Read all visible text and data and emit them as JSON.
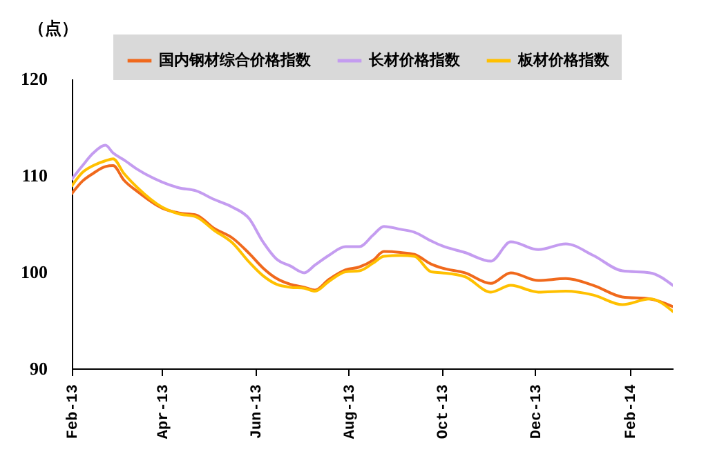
{
  "chart_data": {
    "type": "line",
    "ylabel": "（点）",
    "x": [
      "2013-02-01",
      "2013-02-08",
      "2013-02-15",
      "2013-02-23",
      "2013-02-28",
      "2013-03-07",
      "2013-03-16",
      "2013-04-01",
      "2013-04-12",
      "2013-04-23",
      "2013-05-05",
      "2013-05-17",
      "2013-05-28",
      "2013-06-06",
      "2013-06-15",
      "2013-06-24",
      "2013-07-03",
      "2013-07-10",
      "2013-07-19",
      "2013-07-30",
      "2013-08-08",
      "2013-08-17",
      "2013-08-24",
      "2013-09-04",
      "2013-09-13",
      "2013-09-24",
      "2013-10-01",
      "2013-10-16",
      "2013-11-02",
      "2013-11-15",
      "2013-12-03",
      "2013-12-21",
      "2014-01-08",
      "2014-01-27",
      "2014-02-14",
      "2014-03-01"
    ],
    "series": [
      {
        "name": "国内钢材综合价格指数",
        "color": "#f0691c",
        "values": [
          108.1,
          109.4,
          110.2,
          110.9,
          111.0,
          109.5,
          108.3,
          106.6,
          106.1,
          105.9,
          104.5,
          103.5,
          101.9,
          100.4,
          99.3,
          98.7,
          98.4,
          98.1,
          99.2,
          100.2,
          100.5,
          101.2,
          102.1,
          102.0,
          101.8,
          100.8,
          100.4,
          99.9,
          98.8,
          99.9,
          99.1,
          99.3,
          98.6,
          97.4,
          97.2,
          96.4
        ]
      },
      {
        "name": "长材价格指数",
        "color": "#c49cf0",
        "values": [
          109.6,
          111.0,
          112.3,
          113.1,
          112.3,
          111.6,
          110.6,
          109.3,
          108.7,
          108.4,
          107.5,
          106.7,
          105.5,
          103.1,
          101.3,
          100.6,
          99.9,
          100.7,
          101.7,
          102.6,
          102.6,
          103.8,
          104.7,
          104.4,
          104.1,
          103.2,
          102.7,
          102.0,
          101.1,
          103.1,
          102.3,
          102.9,
          101.7,
          100.1,
          99.9,
          98.6
        ]
      },
      {
        "name": "板材价格指数",
        "color": "#ffc000",
        "values": [
          108.9,
          110.3,
          111.0,
          111.5,
          111.7,
          110.2,
          108.7,
          106.7,
          106.0,
          105.7,
          104.3,
          103.0,
          101.0,
          99.6,
          98.7,
          98.4,
          98.3,
          98.0,
          99.0,
          100.0,
          100.1,
          100.9,
          101.6,
          101.7,
          101.6,
          100.0,
          99.9,
          99.5,
          97.9,
          98.6,
          97.9,
          98.0,
          97.6,
          96.6,
          97.2,
          95.9
        ]
      }
    ],
    "xlim": [
      "2013-02-01",
      "2014-03-01"
    ],
    "xticks": [
      {
        "value": "2013-02-01",
        "label": "Feb-13"
      },
      {
        "value": "2013-04-01",
        "label": "Apr-13"
      },
      {
        "value": "2013-06-01",
        "label": "Jun-13"
      },
      {
        "value": "2013-08-01",
        "label": "Aug-13"
      },
      {
        "value": "2013-10-01",
        "label": "Oct-13"
      },
      {
        "value": "2013-12-01",
        "label": "Dec-13"
      },
      {
        "value": "2014-02-01",
        "label": "Feb-14"
      }
    ],
    "ylim": [
      90,
      120
    ],
    "yticks": [
      90,
      100,
      110,
      120
    ],
    "legend": "top",
    "grid": false,
    "marker": "none",
    "line_style": "solid"
  }
}
